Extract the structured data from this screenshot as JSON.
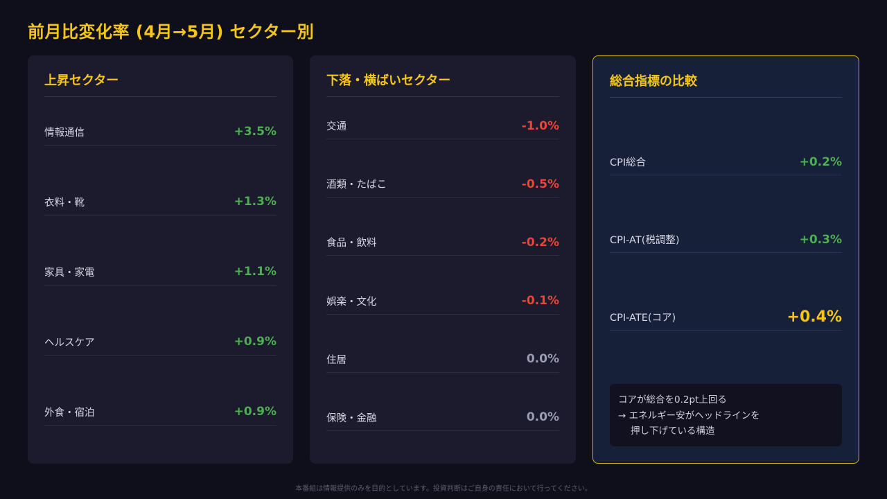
{
  "title": "前月比変化率 (4月→5月) セクター別",
  "panels": {
    "up": {
      "header": "上昇セクター",
      "rows": [
        {
          "label": "情報通信",
          "value": "+3.5%"
        },
        {
          "label": "衣料・靴",
          "value": "+1.3%"
        },
        {
          "label": "家具・家電",
          "value": "+1.1%"
        },
        {
          "label": "ヘルスケア",
          "value": "+0.9%"
        },
        {
          "label": "外食・宿泊",
          "value": "+0.9%"
        }
      ]
    },
    "down": {
      "header": "下落・横ばいセクター",
      "rows": [
        {
          "label": "交通",
          "value": "-1.0%"
        },
        {
          "label": "酒類・たばこ",
          "value": "-0.5%"
        },
        {
          "label": "食品・飲料",
          "value": "-0.2%"
        },
        {
          "label": "娯楽・文化",
          "value": "-0.1%"
        },
        {
          "label": "住居",
          "value": "0.0%"
        },
        {
          "label": "保険・金融",
          "value": "0.0%"
        }
      ]
    },
    "compare": {
      "header": "総合指標の比較",
      "rows": [
        {
          "label": "CPI総合",
          "value": "+0.2%"
        },
        {
          "label": "CPI-AT(税調整)",
          "value": "+0.3%"
        },
        {
          "label": "CPI-ATE(コア)",
          "value": "+0.4%"
        }
      ],
      "note": [
        "コアが総合を0.2pt上回る",
        "→ エネルギー安がヘッドラインを",
        "押し下げている構造"
      ]
    }
  },
  "colors": {
    "accent": "#f5c518",
    "positive": "#4caf50",
    "negative": "#ef4438",
    "neutral": "#9a9cb2"
  },
  "disclaimer": "本番組は情報提供のみを目的としています。投資判断はご自身の責任において行ってください。"
}
